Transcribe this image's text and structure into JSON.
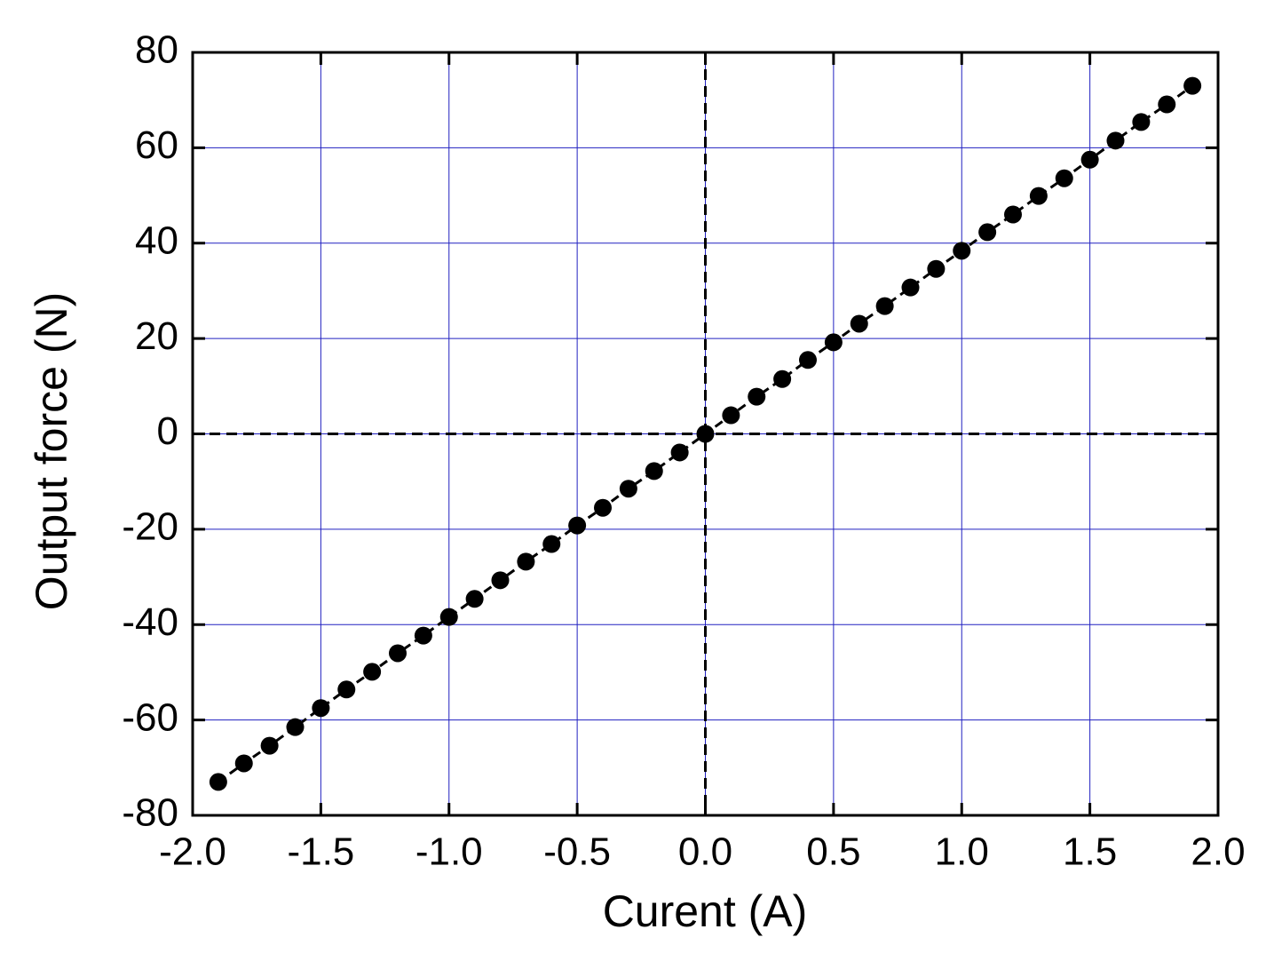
{
  "chart_data": {
    "type": "scatter",
    "x_label": "Curent (A)",
    "y_label": "Output force (N)",
    "x": [
      -1.9,
      -1.8,
      -1.7,
      -1.6,
      -1.5,
      -1.4,
      -1.3,
      -1.2,
      -1.1,
      -1.0,
      -0.9,
      -0.8,
      -0.7,
      -0.6,
      -0.5,
      -0.4,
      -0.3,
      -0.2,
      -0.1,
      0.0,
      0.1,
      0.2,
      0.3,
      0.4,
      0.5,
      0.6,
      0.7,
      0.8,
      0.9,
      1.0,
      1.1,
      1.2,
      1.3,
      1.4,
      1.5,
      1.6,
      1.7,
      1.8,
      1.9
    ],
    "values": [
      -73.0,
      -69.1,
      -65.4,
      -61.5,
      -57.5,
      -53.6,
      -49.9,
      -46.0,
      -42.3,
      -38.4,
      -34.6,
      -30.7,
      -26.8,
      -23.1,
      -19.2,
      -15.5,
      -11.5,
      -7.8,
      -3.9,
      0,
      3.9,
      7.8,
      11.5,
      15.5,
      19.2,
      23.1,
      26.8,
      30.7,
      34.6,
      38.4,
      42.3,
      46.0,
      49.9,
      53.6,
      57.5,
      61.5,
      65.4,
      69.1,
      73.0
    ],
    "color": "#000000",
    "line_style": "dashed",
    "grid_color": "#2020c0",
    "grid": true,
    "zero_lines": true,
    "xlim": [
      -2,
      2
    ],
    "xticks": [
      {
        "value": -2,
        "label": "-2.0"
      },
      -1.5,
      {
        "value": -1,
        "label": "-1.0"
      },
      -0.5,
      {
        "value": 0,
        "label": "0.0"
      },
      0.5,
      {
        "value": 1,
        "label": "1.0"
      },
      1.5,
      {
        "value": 2,
        "label": "2.0"
      }
    ],
    "ylim": [
      -80,
      80
    ],
    "yticks": [
      -80,
      -60,
      -40,
      -20,
      0,
      20,
      40,
      60,
      80
    ]
  }
}
